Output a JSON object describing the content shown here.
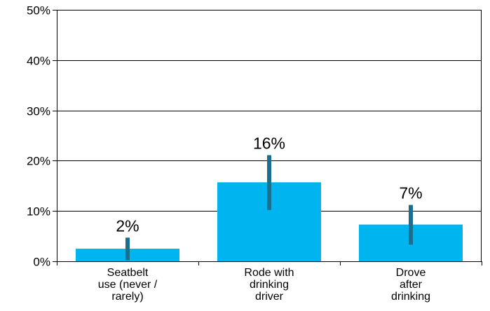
{
  "chart_data": {
    "type": "bar",
    "categories": [
      [
        "Seatbelt",
        "use (never /",
        "rarely)"
      ],
      [
        "Rode with",
        "drinking",
        "driver"
      ],
      [
        "Drove",
        "after",
        "drinking"
      ]
    ],
    "values": [
      2.5,
      15.7,
      7.3
    ],
    "data_labels": [
      "2%",
      "16%",
      "7%"
    ],
    "error_bars": [
      {
        "low": 0.2,
        "high": 4.7
      },
      {
        "low": 10.2,
        "high": 21.1
      },
      {
        "low": 3.3,
        "high": 11.2
      }
    ],
    "ylim": [
      0,
      50
    ],
    "yticks": [
      0,
      10,
      20,
      30,
      40,
      50
    ],
    "ytick_labels": [
      "0%",
      "10%",
      "20%",
      "30%",
      "40%",
      "50%"
    ],
    "grid": true,
    "colors": {
      "bar": "#00b4f0",
      "error_bar": "#1a6e8e",
      "grid": "#000000"
    }
  }
}
